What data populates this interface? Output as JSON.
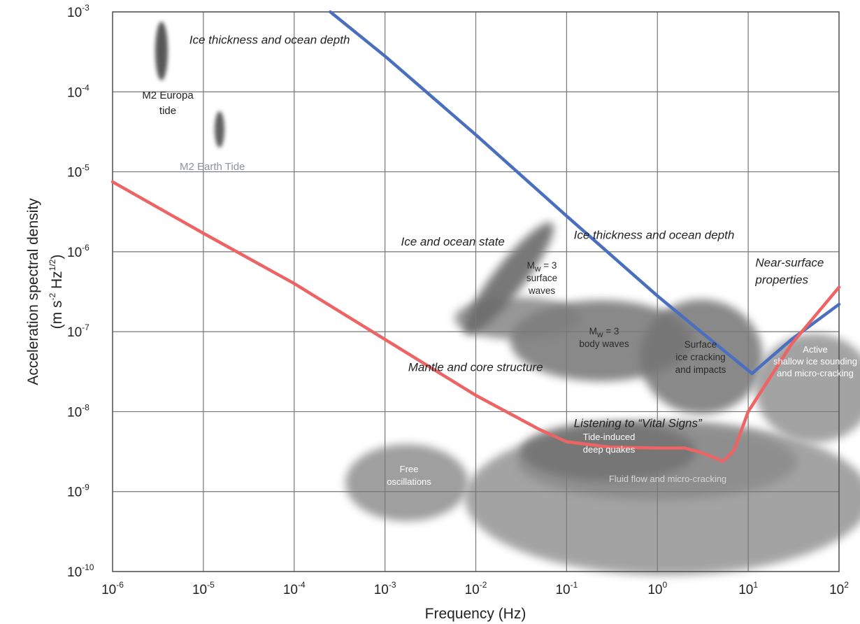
{
  "chart_data": {
    "type": "line",
    "xlabel": "Frequency (Hz)",
    "ylabel_line1": "Acceleration spectral density",
    "ylabel_line2": {
      "base": "(m s",
      "exp1": "-2",
      "mid": " Hz",
      "exp2": "1/2",
      "end": ")"
    },
    "x_scale": "log",
    "y_scale": "log",
    "xlim": [
      1e-06,
      100
    ],
    "ylim": [
      1e-10,
      0.001
    ],
    "grid": true,
    "x_ticks": [
      {
        "value": 1e-06,
        "base": "10",
        "exp": "-6"
      },
      {
        "value": 1e-05,
        "base": "10",
        "exp": "-5"
      },
      {
        "value": 0.0001,
        "base": "10",
        "exp": "-4"
      },
      {
        "value": 0.001,
        "base": "10",
        "exp": "-3"
      },
      {
        "value": 0.01,
        "base": "10",
        "exp": "-2"
      },
      {
        "value": 0.1,
        "base": "10",
        "exp": "-1"
      },
      {
        "value": 1,
        "base": "10",
        "exp": "0"
      },
      {
        "value": 10,
        "base": "10",
        "exp": "1"
      },
      {
        "value": 100,
        "base": "10",
        "exp": "2"
      }
    ],
    "y_ticks": [
      {
        "value": 1e-10,
        "base": "10",
        "exp": "-10"
      },
      {
        "value": 1e-09,
        "base": "10",
        "exp": "-9"
      },
      {
        "value": 1e-08,
        "base": "10",
        "exp": "-8"
      },
      {
        "value": 1e-07,
        "base": "10",
        "exp": "-7"
      },
      {
        "value": 1e-06,
        "base": "10",
        "exp": "-6"
      },
      {
        "value": 1e-05,
        "base": "10",
        "exp": "-5"
      },
      {
        "value": 0.0001,
        "base": "10",
        "exp": "-4"
      },
      {
        "value": 0.001,
        "base": "10",
        "exp": "-3"
      }
    ],
    "series": [
      {
        "color": "#4a6fbe",
        "points": [
          [
            0.00025,
            0.001
          ],
          [
            0.001,
            0.00028
          ],
          [
            0.01,
            2.9e-05
          ],
          [
            0.1,
            2.8e-06
          ],
          [
            1,
            2.8e-07
          ],
          [
            3,
            1e-07
          ],
          [
            11,
            3e-08
          ],
          [
            30,
            8e-08
          ],
          [
            100,
            2.2e-07
          ]
        ]
      },
      {
        "color": "#ee6464",
        "points": [
          [
            1e-06,
            7.5e-06
          ],
          [
            1e-05,
            1.7e-06
          ],
          [
            0.0001,
            4e-07
          ],
          [
            0.001,
            8e-08
          ],
          [
            0.01,
            1.6e-08
          ],
          [
            0.05,
            6e-09
          ],
          [
            0.1,
            4.2e-09
          ],
          [
            0.3,
            3.6e-09
          ],
          [
            1,
            3.5e-09
          ],
          [
            2,
            3.5e-09
          ],
          [
            3,
            3.1e-09
          ],
          [
            5.3,
            2.4e-09
          ],
          [
            7,
            3.3e-09
          ],
          [
            10,
            1e-08
          ],
          [
            30,
            7e-08
          ],
          [
            100,
            3.6e-07
          ]
        ]
      }
    ],
    "regions": [
      {
        "label_lines": [
          "M2 Europa",
          "tide"
        ],
        "fmin": 3e-06,
        "fmax": 4e-06,
        "amin": 0.00017,
        "amax": 0.0008
      },
      {
        "label_lines": [
          "M2 Earth Tide"
        ],
        "fmin": 1.2e-05,
        "fmax": 1.7e-05,
        "amin": 2.5e-05,
        "amax": 5.3e-05
      },
      {
        "label_lines": [
          "Free",
          "oscillations"
        ],
        "fmin": 0.0003,
        "fmax": 0.009,
        "amin": 3.6e-10,
        "amax": 4e-09
      },
      {
        "label_lines": [
          "Mw = 3",
          "surface",
          "waves"
        ],
        "fmin": 0.008,
        "fmax": 0.07,
        "amin": 7e-08,
        "amax": 2e-06
      },
      {
        "label_lines": [
          "Mw = 3",
          "body waves"
        ],
        "fmin": 0.03,
        "fmax": 3,
        "amin": 2.3e-08,
        "amax": 2.5e-07
      },
      {
        "label_lines": [
          "Surface",
          "ice cracking",
          "and impacts"
        ],
        "fmin": 0.5,
        "fmax": 20,
        "amin": 1e-08,
        "amax": 2.2e-07
      },
      {
        "label_lines": [
          "Tide-induced",
          "deep quakes"
        ],
        "fmin": 0.04,
        "fmax": 5,
        "amin": 1.5e-09,
        "amax": 1e-08
      },
      {
        "label_lines": [
          "Fluid flow and micro-cracking"
        ],
        "fmin": 0.01,
        "fmax": 100,
        "amin": 1e-10,
        "amax": 1e-08
      },
      {
        "label_lines": [
          "Active",
          "shallow ice sounding",
          "and micro-cracking"
        ],
        "fmin": 12,
        "fmax": 100,
        "amin": 2e-09,
        "amax": 1.2e-07
      }
    ],
    "annotations": [
      {
        "text": "Ice thickness and ocean depth",
        "f": 7e-06,
        "a": 0.0004
      },
      {
        "text": "Ice and ocean state",
        "f": 0.0015,
        "a": 1.2e-06
      },
      {
        "text": "Ice thickness and ocean depth",
        "f": 0.12,
        "a": 1.45e-06
      },
      {
        "text": "Near-surface",
        "f": 12,
        "a": 6.5e-07
      },
      {
        "text": "properties",
        "f": 12,
        "a": 4e-07
      },
      {
        "text": "Mantle and core structure",
        "f": 0.0018,
        "a": 3.2e-08
      },
      {
        "text": "Listening to “Vital Signs”",
        "f": 0.12,
        "a": 6.4e-09
      }
    ]
  }
}
